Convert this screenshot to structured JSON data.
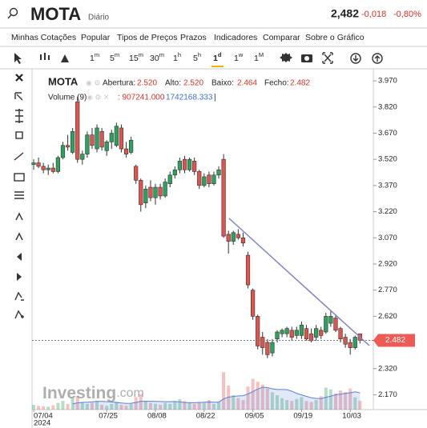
{
  "header": {
    "symbol": "MOTA",
    "period": "Diário",
    "price": "2,482",
    "change": "-0,018",
    "change_pct": "-0,80%"
  },
  "menu": [
    "Minhas Cotações",
    "Popular",
    "Tipos de Preços",
    "Prazos",
    "Indicadores",
    "Comparar",
    "Sobre o Gráfico"
  ],
  "timeframes": [
    {
      "n": "1",
      "u": "m"
    },
    {
      "n": "5",
      "u": "m"
    },
    {
      "n": "15",
      "u": "m"
    },
    {
      "n": "30",
      "u": "m"
    },
    {
      "n": "1",
      "u": "h"
    },
    {
      "n": "5",
      "u": "h"
    },
    {
      "n": "1",
      "u": "d"
    },
    {
      "n": "1",
      "u": "w"
    },
    {
      "n": "1",
      "u": "M"
    }
  ],
  "watermark": {
    "brand": "Investing",
    "domain": ".com"
  },
  "chart_data": {
    "type": "candlestick",
    "legend": {
      "symbol": "MOTA",
      "open_label": "Abertura:",
      "open": "2.520",
      "high_label": "Alto:",
      "high": "2.520",
      "low_label": "Baixo:",
      "low": "2.464",
      "close_label": "Fecho:",
      "close": "2.482",
      "volume_label": "Volume (9)",
      "volume": ": 907241.000",
      "volume_ma": "1742168.333",
      "sep": "|"
    },
    "categories": [
      "07/04",
      null,
      null,
      null,
      null,
      null,
      null,
      null,
      null,
      null,
      null,
      null,
      null,
      null,
      null,
      "07/25",
      null,
      null,
      null,
      null,
      null,
      null,
      null,
      null,
      null,
      "08/08",
      null,
      null,
      null,
      null,
      null,
      null,
      null,
      null,
      null,
      "08/22",
      null,
      null,
      null,
      null,
      null,
      null,
      null,
      null,
      null,
      "09/05",
      null,
      null,
      null,
      null,
      null,
      null,
      null,
      null,
      null,
      "09/19",
      null,
      null,
      null,
      null,
      null,
      null,
      null,
      null,
      null,
      "10/03",
      null,
      null
    ],
    "year_label": "2024",
    "open": [
      3.49,
      3.5,
      3.48,
      3.46,
      3.47,
      3.45,
      3.53,
      3.6,
      3.56,
      3.85,
      3.52,
      3.55,
      3.66,
      3.58,
      3.68,
      3.57,
      3.62,
      3.6,
      3.7,
      3.58,
      3.56,
      3.48,
      3.4,
      3.27,
      3.36,
      3.3,
      3.36,
      3.31,
      3.38,
      3.43,
      3.46,
      3.52,
      3.46,
      3.51,
      3.45,
      3.37,
      3.43,
      3.38,
      3.43,
      3.52,
      3.09,
      3.05,
      3.09,
      3.07,
      2.97,
      2.77,
      2.62,
      2.5,
      2.47,
      2.41,
      2.49,
      2.52,
      2.52,
      2.54,
      2.51,
      2.51,
      2.55,
      2.52,
      2.5,
      2.54,
      2.53,
      2.58,
      2.61,
      2.55,
      2.5,
      2.47,
      2.44,
      2.52
    ],
    "high": [
      3.52,
      3.53,
      3.5,
      3.49,
      3.5,
      3.54,
      3.62,
      3.66,
      3.7,
      3.88,
      3.57,
      3.68,
      3.7,
      3.72,
      3.7,
      3.63,
      3.69,
      3.73,
      3.72,
      3.62,
      3.65,
      3.49,
      3.41,
      3.37,
      3.4,
      3.38,
      3.38,
      3.41,
      3.45,
      3.48,
      3.53,
      3.54,
      3.53,
      3.53,
      3.46,
      3.44,
      3.45,
      3.45,
      3.48,
      3.55,
      3.11,
      3.11,
      3.12,
      3.1,
      2.99,
      2.78,
      2.63,
      2.53,
      2.49,
      2.49,
      2.54,
      2.55,
      2.56,
      2.56,
      2.56,
      2.59,
      2.57,
      2.55,
      2.57,
      2.56,
      2.64,
      2.65,
      2.63,
      2.56,
      2.52,
      2.49,
      2.51,
      2.52
    ],
    "low": [
      3.46,
      3.47,
      3.44,
      3.43,
      3.44,
      3.44,
      3.52,
      3.57,
      3.55,
      3.5,
      3.49,
      3.53,
      3.58,
      3.56,
      3.57,
      3.54,
      3.58,
      3.59,
      3.56,
      3.53,
      3.55,
      3.38,
      3.22,
      3.24,
      3.28,
      3.26,
      3.29,
      3.3,
      3.36,
      3.41,
      3.44,
      3.44,
      3.45,
      3.43,
      3.35,
      3.36,
      3.36,
      3.37,
      3.41,
      3.07,
      2.98,
      3.03,
      3.06,
      3.02,
      2.78,
      2.6,
      2.43,
      2.4,
      2.38,
      2.39,
      2.47,
      2.5,
      2.5,
      2.48,
      2.49,
      2.49,
      2.48,
      2.47,
      2.48,
      2.49,
      2.52,
      2.56,
      2.53,
      2.47,
      2.44,
      2.4,
      2.43,
      2.464
    ],
    "close": [
      3.5,
      3.48,
      3.46,
      3.47,
      3.45,
      3.53,
      3.6,
      3.59,
      3.68,
      3.52,
      3.55,
      3.66,
      3.6,
      3.7,
      3.59,
      3.62,
      3.67,
      3.71,
      3.58,
      3.55,
      3.63,
      3.4,
      3.26,
      3.35,
      3.3,
      3.36,
      3.31,
      3.39,
      3.43,
      3.46,
      3.51,
      3.46,
      3.52,
      3.45,
      3.37,
      3.42,
      3.38,
      3.43,
      3.46,
      3.08,
      3.05,
      3.1,
      3.07,
      3.04,
      2.8,
      2.62,
      2.45,
      2.44,
      2.4,
      2.47,
      2.53,
      2.54,
      2.55,
      2.5,
      2.54,
      2.57,
      2.49,
      2.48,
      2.55,
      2.51,
      2.62,
      2.62,
      2.54,
      2.49,
      2.46,
      2.44,
      2.5,
      2.482
    ],
    "up_color": "#2ea15f",
    "down_color": "#e0544e",
    "ylim": [
      2.085,
      4.03
    ],
    "yticks": [
      {
        "value": 3.97,
        "label": "3.970"
      },
      {
        "value": 3.82,
        "label": "3.820"
      },
      {
        "value": 3.67,
        "label": "3.670"
      },
      {
        "value": 3.52,
        "label": "3.520"
      },
      {
        "value": 3.37,
        "label": "3.370"
      },
      {
        "value": 3.22,
        "label": "3.220"
      },
      {
        "value": 3.07,
        "label": "3.070"
      },
      {
        "value": 2.92,
        "label": "2.920"
      },
      {
        "value": 2.77,
        "label": "2.770"
      },
      {
        "value": 2.62,
        "label": "2.620"
      },
      {
        "value": 2.32,
        "label": "2.320"
      },
      {
        "value": 2.17,
        "label": "2.170"
      }
    ],
    "last_price": {
      "value": 2.482,
      "label": "2.482"
    },
    "volume": {
      "values": [
        500000,
        400000,
        350000,
        300000,
        450000,
        700000,
        900000,
        600000,
        1200000,
        1400000,
        800000,
        600000,
        700000,
        900000,
        500000,
        400000,
        600000,
        800000,
        500000,
        400000,
        600000,
        1300000,
        1600000,
        900000,
        700000,
        600000,
        500000,
        700000,
        600000,
        800000,
        1100000,
        900000,
        700000,
        600000,
        800000,
        700000,
        1000000,
        600000,
        800000,
        3900000,
        2500000,
        1500000,
        1200000,
        1000000,
        2400000,
        3200000,
        2900000,
        2600000,
        2200000,
        1800000,
        1500000,
        1200000,
        1000000,
        900000,
        1100000,
        1300000,
        900000,
        800000,
        1000000,
        1400000,
        2300000,
        2100000,
        1700000,
        2000000,
        1800000,
        2200000,
        1272264,
        907241
      ],
      "ma": [
        null,
        null,
        null,
        null,
        null,
        null,
        null,
        null,
        600000,
        700000,
        750000,
        770000,
        800000,
        850000,
        850000,
        830000,
        790000,
        750000,
        690000,
        650000,
        660000,
        740000,
        860000,
        860000,
        860000,
        850000,
        840000,
        820000,
        820000,
        840000,
        800000,
        740000,
        730000,
        720000,
        740000,
        770000,
        790000,
        770000,
        770000,
        1120000,
        1300000,
        1370000,
        1430000,
        1450000,
        1630000,
        1880000,
        2130000,
        2330000,
        2290000,
        2170000,
        2090000,
        2090000,
        2070000,
        1920000,
        1690000,
        1530000,
        1380000,
        1240000,
        1170000,
        1150000,
        1280000,
        1400000,
        1550000,
        1600000,
        1700000,
        1750000,
        1850000,
        1742168.333
      ],
      "vlim": [
        0,
        5000000
      ],
      "ma_color": "#5b7fd6"
    }
  }
}
